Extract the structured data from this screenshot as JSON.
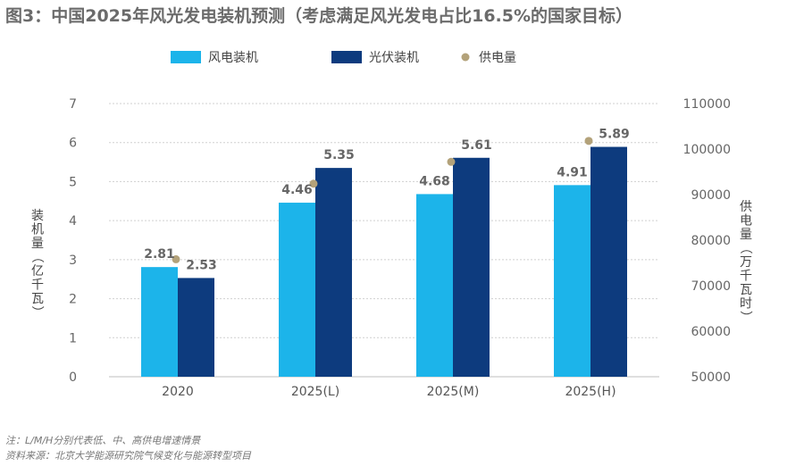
{
  "title": "图3：中国2025年风光发电装机预测（考虑满足风光发电占比16.5%的国家目标）",
  "legend": [
    {
      "label": "风电装机",
      "color": "#1cb4ea",
      "shape": "rect"
    },
    {
      "label": "光伏装机",
      "color": "#0d3b7e",
      "shape": "rect"
    },
    {
      "label": "供电量",
      "color": "#b3a27a",
      "shape": "dot"
    }
  ],
  "y_left_label": "装机量（亿千瓦）",
  "y_right_label": "供电量（万千瓦时）",
  "notes": [
    "注：L/M/H分别代表低、中、高供电增速情景",
    "资料来源：北京大学能源研究院气候变化与能源转型项目"
  ],
  "chart_data": {
    "type": "bar",
    "categories": [
      "2020",
      "2025(L)",
      "2025(M)",
      "2025(H)"
    ],
    "series": [
      {
        "name": "风电装机",
        "axis": "left",
        "color": "#1cb4ea",
        "values": [
          2.81,
          4.46,
          4.68,
          4.91
        ],
        "labels": [
          "2.81",
          "4.46",
          "4.68",
          "4.91"
        ]
      },
      {
        "name": "光伏装机",
        "axis": "left",
        "color": "#0d3b7e",
        "values": [
          2.53,
          5.35,
          5.61,
          5.89
        ],
        "labels": [
          "2.53",
          "5.35",
          "5.61",
          "5.89"
        ]
      },
      {
        "name": "供电量",
        "axis": "right",
        "type": "scatter",
        "color": "#b3a27a",
        "values": [
          75800,
          92400,
          97200,
          101800
        ]
      }
    ],
    "y_left": {
      "min": 0,
      "max": 7,
      "ticks": [
        "0",
        "1",
        "2",
        "3",
        "4",
        "5",
        "6",
        "7"
      ]
    },
    "y_right": {
      "min": 50000,
      "max": 110000,
      "ticks": [
        "50000",
        "60000",
        "70000",
        "80000",
        "90000",
        "100000",
        "110000"
      ]
    },
    "grid": "horizontal-dashed"
  }
}
